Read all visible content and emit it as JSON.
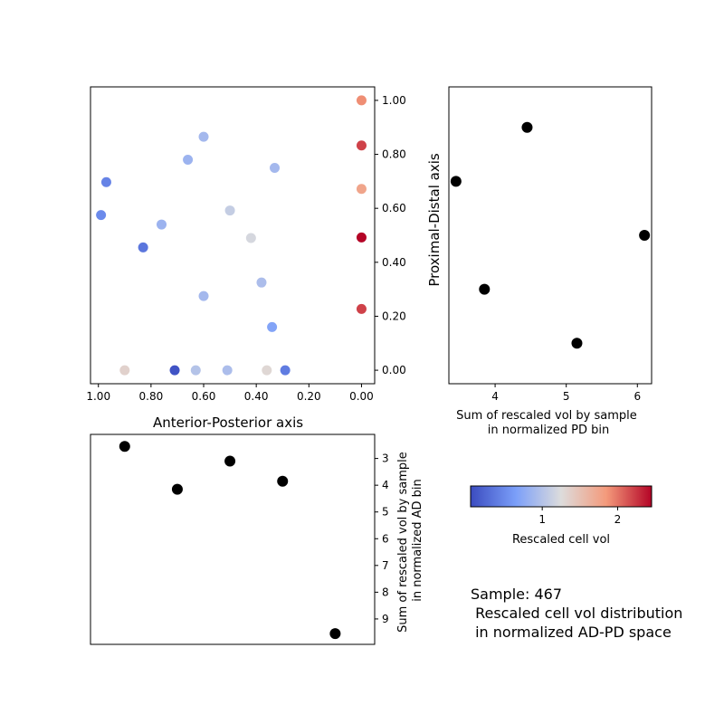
{
  "chart_data": [
    {
      "type": "scatter",
      "panel": "main",
      "xlabel": "Anterior-Posterior axis",
      "xlim": [
        1.03,
        -0.05
      ],
      "ylim": [
        -0.05,
        1.05
      ],
      "xticks": [
        1.0,
        0.8,
        0.6,
        0.4,
        0.2,
        0.0
      ],
      "xtick_labels": [
        "1.00",
        "0.80",
        "0.60",
        "0.40",
        "0.20",
        "0.00"
      ],
      "yticks": [
        0.0,
        0.2,
        0.4,
        0.6,
        0.8,
        1.0
      ],
      "ytick_labels": [
        "0.00",
        "0.20",
        "0.40",
        "0.60",
        "0.80",
        "1.00"
      ],
      "colormap": "coolwarm",
      "color_range": [
        0.05,
        2.45
      ],
      "points": [
        {
          "x": 0.0,
          "y": 1.0,
          "v": 1.9
        },
        {
          "x": 0.0,
          "y": 0.833,
          "v": 2.2
        },
        {
          "x": 0.0,
          "y": 0.672,
          "v": 1.75
        },
        {
          "x": 0.0,
          "y": 0.492,
          "v": 2.45
        },
        {
          "x": 0.0,
          "y": 0.227,
          "v": 2.2
        },
        {
          "x": 0.6,
          "y": 0.865,
          "v": 0.9
        },
        {
          "x": 0.66,
          "y": 0.78,
          "v": 0.85
        },
        {
          "x": 0.33,
          "y": 0.75,
          "v": 0.9
        },
        {
          "x": 0.97,
          "y": 0.697,
          "v": 0.45
        },
        {
          "x": 0.99,
          "y": 0.575,
          "v": 0.5
        },
        {
          "x": 0.5,
          "y": 0.592,
          "v": 1.1
        },
        {
          "x": 0.76,
          "y": 0.54,
          "v": 0.85
        },
        {
          "x": 0.42,
          "y": 0.49,
          "v": 1.2
        },
        {
          "x": 0.83,
          "y": 0.455,
          "v": 0.35
        },
        {
          "x": 0.38,
          "y": 0.325,
          "v": 0.95
        },
        {
          "x": 0.6,
          "y": 0.275,
          "v": 0.9
        },
        {
          "x": 0.34,
          "y": 0.16,
          "v": 0.7
        },
        {
          "x": 0.9,
          "y": 0.0,
          "v": 1.35
        },
        {
          "x": 0.71,
          "y": 0.0,
          "v": 0.1
        },
        {
          "x": 0.63,
          "y": 0.0,
          "v": 1.0
        },
        {
          "x": 0.51,
          "y": 0.0,
          "v": 0.95
        },
        {
          "x": 0.36,
          "y": 0.0,
          "v": 1.3
        },
        {
          "x": 0.29,
          "y": 0.0,
          "v": 0.4
        }
      ]
    },
    {
      "type": "scatter",
      "panel": "pd",
      "xlabel": "Sum of rescaled vol by sample\nin normalized PD bin",
      "ylabel": "Proximal-Distal axis",
      "xlim": [
        3.35,
        6.2
      ],
      "ylim": [
        -0.05,
        1.05
      ],
      "xticks": [
        4,
        5,
        6
      ],
      "xtick_labels": [
        "4",
        "5",
        "6"
      ],
      "points": [
        {
          "x": 3.45,
          "y": 0.7
        },
        {
          "x": 4.45,
          "y": 0.9
        },
        {
          "x": 6.1,
          "y": 0.5
        },
        {
          "x": 3.85,
          "y": 0.3
        },
        {
          "x": 5.15,
          "y": 0.1
        }
      ]
    },
    {
      "type": "scatter",
      "panel": "ad",
      "ylabel": "Sum of rescaled vol by sample\nin normalized AD bin",
      "xlim": [
        1.03,
        -0.05
      ],
      "ylim": [
        2.1,
        9.95
      ],
      "inverted_y": true,
      "yticks": [
        3,
        4,
        5,
        6,
        7,
        8,
        9
      ],
      "ytick_labels": [
        "3",
        "4",
        "5",
        "6",
        "7",
        "8",
        "9"
      ],
      "points": [
        {
          "x": 0.9,
          "y": 2.55
        },
        {
          "x": 0.7,
          "y": 4.15
        },
        {
          "x": 0.5,
          "y": 3.1
        },
        {
          "x": 0.3,
          "y": 3.85
        },
        {
          "x": 0.1,
          "y": 9.55
        }
      ]
    }
  ],
  "colorbar": {
    "label": "Rescaled cell vol",
    "range": [
      0.05,
      2.45
    ],
    "ticks": [
      1,
      2
    ],
    "tick_labels": [
      "1",
      "2"
    ]
  },
  "caption": {
    "line1": "Sample: 467",
    "line2": " Rescaled cell vol distribution",
    "line3": " in normalized AD-PD space"
  }
}
